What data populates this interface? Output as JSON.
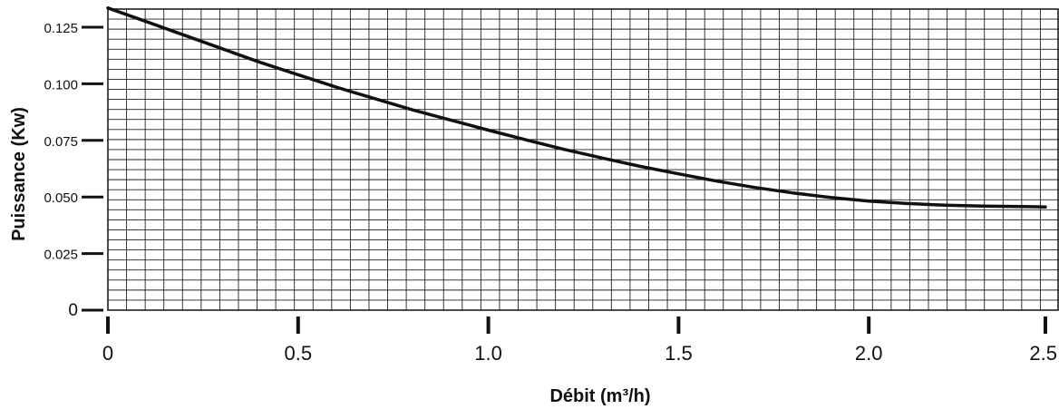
{
  "chart_data": {
    "type": "line",
    "xlabel": "Débit (m³/h)",
    "ylabel": "Puissance (Kw)",
    "xlim": [
      0,
      2.5
    ],
    "ylim": [
      0,
      0.133
    ],
    "grid": true,
    "x_ticks": [
      0,
      0.5,
      1.0,
      1.5,
      2.0,
      2.5
    ],
    "x_tick_labels": [
      "0",
      "0.5",
      "1.0",
      "1.5",
      "2.0",
      "2.5"
    ],
    "y_ticks": [
      0,
      0.025,
      0.05,
      0.075,
      0.1,
      0.125
    ],
    "y_tick_labels": [
      "0",
      "0.025",
      "0.050",
      "0.075",
      "0.100",
      "0.125"
    ],
    "series": [
      {
        "x": [
          0,
          0.1,
          0.2,
          0.3,
          0.4,
          0.5,
          0.6,
          0.7,
          0.8,
          0.9,
          1.0,
          1.1,
          1.2,
          1.3,
          1.4,
          1.5,
          1.6,
          1.7,
          1.8,
          1.9,
          2.0,
          2.1,
          2.2,
          2.3,
          2.4,
          2.5
        ],
        "y": [
          0.1335,
          0.1275,
          0.1215,
          0.1155,
          0.1095,
          0.104,
          0.0985,
          0.0935,
          0.0885,
          0.084,
          0.0795,
          0.0752,
          0.071,
          0.0672,
          0.0635,
          0.0602,
          0.057,
          0.0542,
          0.0518,
          0.0498,
          0.0482,
          0.0471,
          0.0464,
          0.046,
          0.0458,
          0.0456
        ]
      }
    ]
  }
}
